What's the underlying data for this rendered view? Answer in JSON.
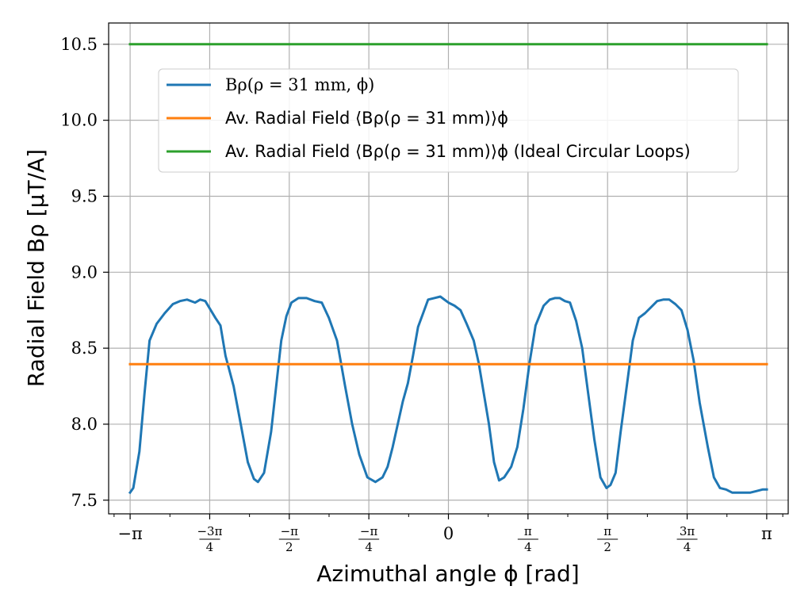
{
  "chart_data": {
    "type": "line",
    "title": "",
    "xlabel": "Azimuthal angle ϕ [rad]",
    "ylabel": "Radial Field Bρ [μT/A]",
    "xlim": [
      -3.3537,
      3.3537
    ],
    "ylim": [
      7.41,
      10.64
    ],
    "grid": true,
    "legend_position": "top-center",
    "x_ticks": [
      {
        "value": -3.14159,
        "label": "−π"
      },
      {
        "value": -2.35619,
        "label": "−3π/4"
      },
      {
        "value": -1.5708,
        "label": "−π/2"
      },
      {
        "value": -0.7854,
        "label": "−π/4"
      },
      {
        "value": 0,
        "label": "0"
      },
      {
        "value": 0.7854,
        "label": "π/4"
      },
      {
        "value": 1.5708,
        "label": "π/2"
      },
      {
        "value": 2.35619,
        "label": "3π/4"
      },
      {
        "value": 3.14159,
        "label": "π"
      }
    ],
    "y_ticks": [
      {
        "value": 7.5,
        "label": "7.5"
      },
      {
        "value": 8.0,
        "label": "8.0"
      },
      {
        "value": 8.5,
        "label": "8.5"
      },
      {
        "value": 9.0,
        "label": "9.0"
      },
      {
        "value": 9.5,
        "label": "9.5"
      },
      {
        "value": 10.0,
        "label": "10.0"
      },
      {
        "value": 10.5,
        "label": "10.5"
      }
    ],
    "series": [
      {
        "name": "Bρ(ρ = 31 mm, ϕ)",
        "color": "#1f77b4",
        "x": [
          -3.142,
          -3.11,
          -3.05,
          -3.0,
          -2.95,
          -2.88,
          -2.8,
          -2.72,
          -2.65,
          -2.58,
          -2.5,
          -2.45,
          -2.4,
          -2.3,
          -2.25,
          -2.2,
          -2.12,
          -2.05,
          -1.98,
          -1.92,
          -1.88,
          -1.82,
          -1.75,
          -1.7,
          -1.65,
          -1.6,
          -1.55,
          -1.48,
          -1.4,
          -1.32,
          -1.25,
          -1.18,
          -1.1,
          -1.02,
          -0.95,
          -0.88,
          -0.8,
          -0.72,
          -0.65,
          -0.6,
          -0.55,
          -0.5,
          -0.45,
          -0.4,
          -0.35,
          -0.3,
          -0.25,
          -0.2,
          -0.14,
          -0.08,
          0.0,
          0.06,
          0.12,
          0.18,
          0.25,
          0.3,
          0.35,
          0.4,
          0.45,
          0.5,
          0.55,
          0.62,
          0.68,
          0.74,
          0.8,
          0.86,
          0.94,
          1.0,
          1.05,
          1.1,
          1.15,
          1.2,
          1.26,
          1.32,
          1.38,
          1.44,
          1.5,
          1.56,
          1.6,
          1.65,
          1.7,
          1.76,
          1.82,
          1.88,
          1.94,
          2.0,
          2.06,
          2.12,
          2.18,
          2.24,
          2.3,
          2.36,
          2.42,
          2.48,
          2.56,
          2.62,
          2.68,
          2.74,
          2.8,
          2.86,
          2.92,
          2.98,
          3.04,
          3.1,
          3.142
        ],
        "y": [
          7.55,
          7.58,
          7.82,
          8.2,
          8.55,
          8.66,
          8.73,
          8.79,
          8.81,
          8.82,
          8.8,
          8.82,
          8.81,
          8.7,
          8.65,
          8.45,
          8.25,
          8.0,
          7.75,
          7.64,
          7.62,
          7.68,
          7.95,
          8.25,
          8.55,
          8.71,
          8.8,
          8.83,
          8.83,
          8.81,
          8.8,
          8.7,
          8.55,
          8.25,
          8.0,
          7.8,
          7.65,
          7.62,
          7.65,
          7.72,
          7.85,
          8.0,
          8.15,
          8.27,
          8.45,
          8.64,
          8.73,
          8.82,
          8.83,
          8.84,
          8.8,
          8.78,
          8.75,
          8.66,
          8.55,
          8.4,
          8.2,
          8.0,
          7.75,
          7.63,
          7.65,
          7.72,
          7.85,
          8.1,
          8.4,
          8.65,
          8.78,
          8.82,
          8.83,
          8.83,
          8.81,
          8.8,
          8.68,
          8.5,
          8.2,
          7.9,
          7.65,
          7.58,
          7.6,
          7.68,
          7.95,
          8.25,
          8.55,
          8.7,
          8.73,
          8.77,
          8.81,
          8.82,
          8.82,
          8.79,
          8.75,
          8.62,
          8.42,
          8.14,
          7.85,
          7.65,
          7.58,
          7.57,
          7.55,
          7.55,
          7.55,
          7.55,
          7.56,
          7.57,
          7.57
        ]
      },
      {
        "name": "Av. Radial Field ⟨Bρ(ρ = 31 mm)⟩ϕ",
        "color": "#ff7f0e",
        "x": [
          -3.142,
          3.142
        ],
        "y": [
          8.395,
          8.395
        ]
      },
      {
        "name": "Av. Radial Field ⟨Bρ(ρ = 31 mm)⟩ϕ (Ideal Circular Loops)",
        "color": "#2ca02c",
        "x": [
          -3.142,
          3.142
        ],
        "y": [
          10.5,
          10.5
        ]
      }
    ]
  },
  "legend": {
    "label_1": "Bρ(ρ = 31 mm, ϕ)",
    "label_2": "Av. Radial Field ⟨Bρ(ρ = 31 mm)⟩ϕ",
    "label_3": "Av. Radial Field ⟨Bρ(ρ = 31 mm)⟩ϕ (Ideal Circular Loops)"
  },
  "axis_titles": {
    "x": "Azimuthal angle ϕ [rad]",
    "y": "Radial Field Bρ [μT/A]"
  }
}
